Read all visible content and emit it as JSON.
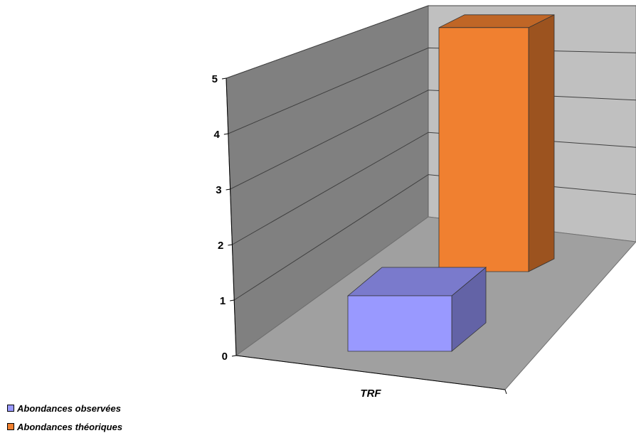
{
  "chart_data": {
    "type": "bar",
    "categories": [
      "TRF"
    ],
    "series": [
      {
        "name": "Abondances observées",
        "values": [
          1
        ],
        "color": "#9999ff"
      },
      {
        "name": "Abondances théoriques",
        "values": [
          4.4
        ],
        "color": "#f08030"
      }
    ],
    "yticks": [
      "0",
      "1",
      "2",
      "3",
      "4",
      "5"
    ],
    "ylim": [
      0,
      5
    ],
    "grid": true,
    "legend_position": "bottom-left",
    "style": "3d-column"
  }
}
